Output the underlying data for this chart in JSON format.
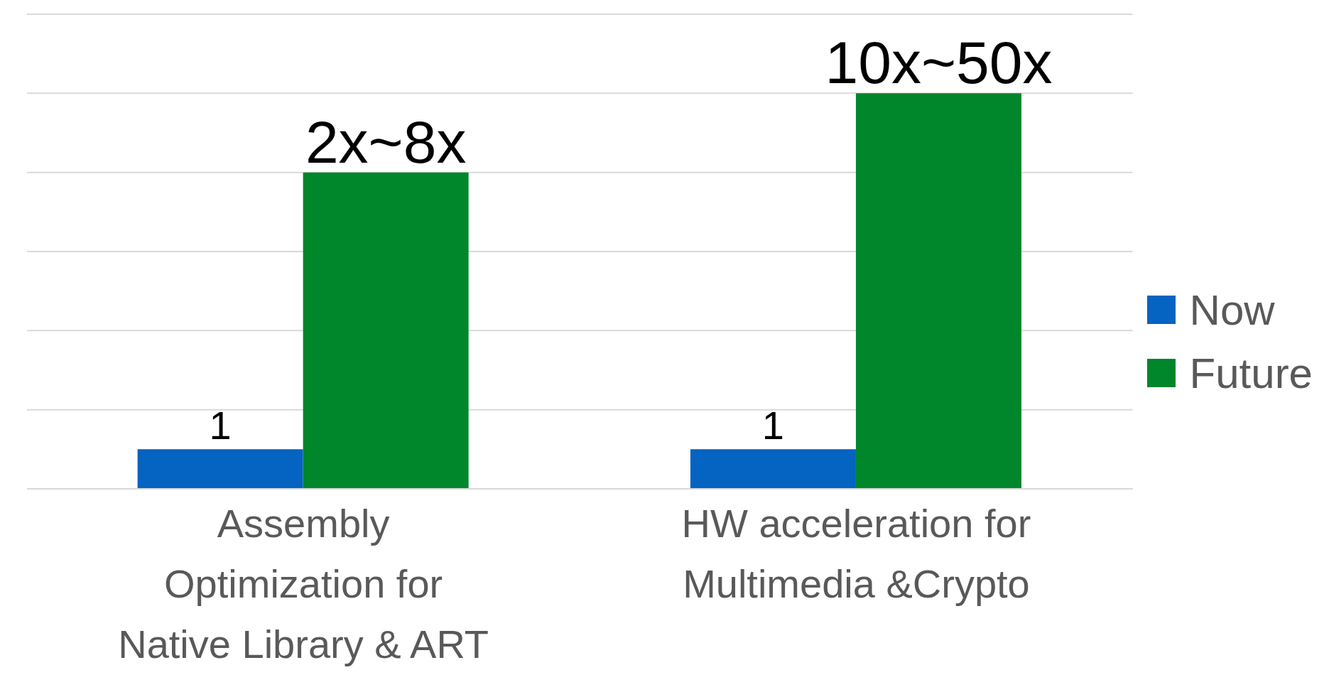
{
  "chart_data": {
    "type": "bar",
    "categories": [
      "Assembly Optimization for Native Library & ART",
      "HW acceleration for Multimedia &Crypto"
    ],
    "grid": "y",
    "legend": "right",
    "series": [
      {
        "name": "Now",
        "color": "#0563c1",
        "values": [
          1,
          1
        ],
        "value_labels": [
          "1",
          "1"
        ]
      },
      {
        "name": "Future",
        "color": "#00862b",
        "values": [
          8,
          10
        ],
        "value_labels": [
          "2x~8x",
          "10x~50x"
        ]
      }
    ]
  }
}
